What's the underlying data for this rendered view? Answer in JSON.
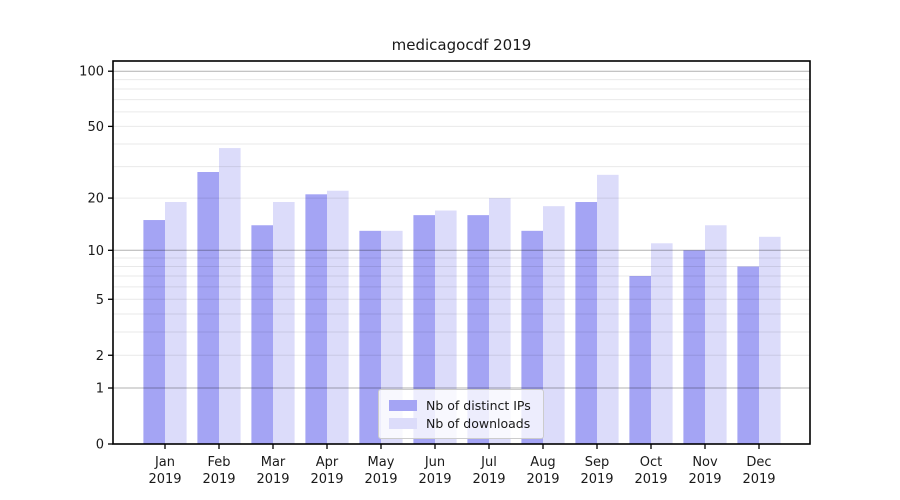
{
  "figure": {
    "background": "#ffffff",
    "spine_color": "#000000",
    "tick_label_color": "#1a1a1a",
    "major_grid_color": "#b0b0b0",
    "minor_grid_color": "#ebebeb"
  },
  "chart_data": {
    "type": "bar",
    "title": "medicagocdf 2019",
    "xlabel": "",
    "ylabel": "",
    "categories": [
      "Jan 2019",
      "Feb 2019",
      "Mar 2019",
      "Apr 2019",
      "May 2019",
      "Jun 2019",
      "Jul 2019",
      "Aug 2019",
      "Sep 2019",
      "Oct 2019",
      "Nov 2019",
      "Dec 2019"
    ],
    "series": [
      {
        "name": "Nb of distinct IPs",
        "color": "#a4a4f4",
        "values": [
          15,
          28,
          14,
          21,
          13,
          16,
          16,
          13,
          19,
          7,
          10,
          8
        ]
      },
      {
        "name": "Nb of downloads",
        "color": "#dcdcfa",
        "values": [
          19,
          38,
          19,
          22,
          13,
          17,
          20,
          18,
          27,
          11,
          14,
          12
        ]
      }
    ],
    "yscale": "log1p",
    "yticks": [
      0,
      1,
      2,
      5,
      10,
      20,
      50,
      100
    ],
    "ylim": [
      0,
      113.6
    ],
    "grid": {
      "major": [
        1,
        10,
        100
      ],
      "minor": [
        2,
        3,
        4,
        5,
        6,
        7,
        8,
        9,
        20,
        30,
        40,
        50,
        60,
        70,
        80,
        90
      ]
    },
    "legend_position": "lower center",
    "legend": [
      "Nb of distinct IPs",
      "Nb of downloads"
    ]
  }
}
